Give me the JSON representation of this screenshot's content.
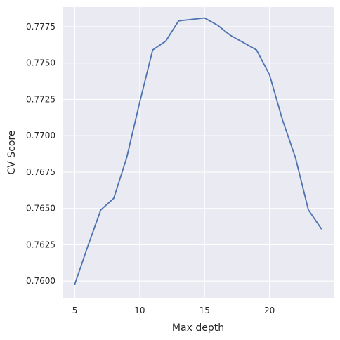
{
  "chart_data": {
    "type": "line",
    "title": "",
    "xlabel": "Max depth",
    "ylabel": "CV Score",
    "xlim": [
      4.05,
      24.95
    ],
    "ylim": [
      0.75885,
      0.77885
    ],
    "xticks": [
      5,
      10,
      15,
      20
    ],
    "xtick_labels": [
      "5",
      "10",
      "15",
      "20"
    ],
    "yticks": [
      0.76,
      0.7625,
      0.765,
      0.7675,
      0.77,
      0.7725,
      0.775,
      0.7775
    ],
    "ytick_labels": [
      "0.7600",
      "0.7625",
      "0.7650",
      "0.7675",
      "0.7700",
      "0.7725",
      "0.7750",
      "0.7775"
    ],
    "grid": true,
    "legend": "none",
    "series": [
      {
        "color": "#4c72b0",
        "x": [
          5,
          6,
          7,
          8,
          9,
          10,
          11,
          12,
          13,
          14,
          15,
          16,
          17,
          18,
          19,
          20,
          21,
          22,
          23,
          24
        ],
        "values": [
          0.7598,
          0.7624,
          0.7649,
          0.7657,
          0.7685,
          0.7723,
          0.7759,
          0.7765,
          0.7779,
          0.778,
          0.7781,
          0.7776,
          0.7769,
          0.7764,
          0.7759,
          0.7742,
          0.7711,
          0.7685,
          0.7649,
          0.7636
        ]
      }
    ],
    "style": {
      "background": "#eaeaf2",
      "grid_color": "#ffffff",
      "text_color": "#262626"
    }
  }
}
